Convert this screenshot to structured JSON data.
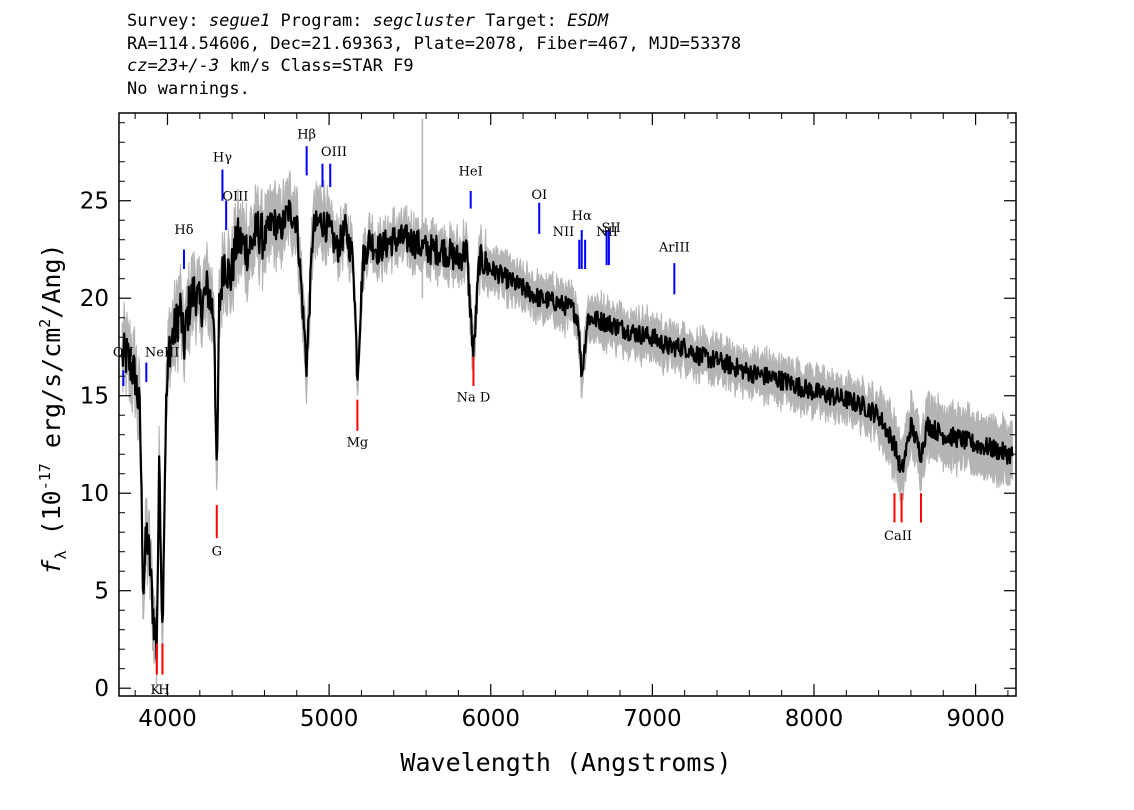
{
  "header": {
    "survey_label": "Survey: ",
    "survey": "segue1",
    "program_label": " Program: ",
    "program": "segcluster",
    "target_label": " Target: ",
    "target": "ESDM",
    "line2": "RA=114.54606, Dec=21.69363, Plate=2078, Fiber=467, MJD=53378",
    "cz": "cz=23+/-3",
    "cz_rest": " km/s Class=STAR F9",
    "line4": "No warnings."
  },
  "chart_data": {
    "type": "line",
    "title": "",
    "xlabel": "Wavelength (Angstroms)",
    "ylabel": "f_λ (10^-17 erg/s/cm^2/Ang)",
    "ylabel_parts": {
      "f": "f",
      "sub": "λ",
      "pre": " (10",
      "sup1": "-17",
      "mid": " erg/s/cm",
      "sup2": "2",
      "post": "/Ang)"
    },
    "xlim": [
      3700,
      9250
    ],
    "ylim": [
      -0.4,
      29.5
    ],
    "x_ticks": [
      4000,
      5000,
      6000,
      7000,
      8000,
      9000
    ],
    "y_ticks": [
      0,
      5,
      10,
      15,
      20,
      25
    ],
    "colors": {
      "spectrum": "#000000",
      "error_band": "#b4b4b4",
      "emission": "#0000ff",
      "absorption": "#ff0000"
    },
    "series": [
      {
        "role": "spectrum",
        "x": [
          3750,
          3800,
          3830,
          3850,
          3870,
          3890,
          3910,
          3933,
          3950,
          3968,
          3990,
          4010,
          4050,
          4080,
          4102,
          4130,
          4170,
          4200,
          4250,
          4290,
          4305,
          4320,
          4350,
          4390,
          4430,
          4500,
          4560,
          4600,
          4650,
          4700,
          4750,
          4800,
          4861,
          4900,
          4950,
          5000,
          5050,
          5100,
          5150,
          5175,
          5210,
          5250,
          5300,
          5400,
          5500,
          5600,
          5700,
          5800,
          5850,
          5893,
          5930,
          6000,
          6100,
          6200,
          6300,
          6400,
          6500,
          6540,
          6563,
          6600,
          6700,
          6800,
          6900,
          7000,
          7100,
          7200,
          7300,
          7400,
          7500,
          7600,
          7700,
          7800,
          7900,
          8000,
          8100,
          8200,
          8300,
          8400,
          8498,
          8542,
          8600,
          8662,
          8700,
          8800,
          8900,
          9000,
          9100,
          9200
        ],
        "y": [
          17.0,
          16.0,
          14.0,
          5.0,
          8.0,
          6.5,
          4.0,
          2.0,
          12.0,
          3.0,
          14.0,
          17.5,
          18.5,
          19.5,
          17.5,
          19.5,
          20.5,
          19.5,
          20.5,
          19.0,
          10.0,
          19.5,
          22.0,
          21.0,
          23.0,
          22.5,
          23.5,
          23.0,
          24.0,
          23.5,
          24.5,
          24.0,
          16.5,
          23.5,
          24.0,
          23.5,
          22.5,
          23.5,
          22.0,
          16.0,
          22.0,
          23.0,
          22.5,
          23.0,
          23.0,
          22.5,
          22.5,
          22.0,
          22.5,
          17.0,
          22.0,
          21.5,
          21.0,
          20.5,
          20.0,
          19.8,
          19.5,
          19.0,
          16.0,
          19.0,
          18.8,
          18.5,
          18.2,
          18.0,
          17.5,
          17.5,
          17.0,
          16.8,
          16.5,
          16.2,
          16.0,
          15.8,
          15.5,
          15.2,
          15.0,
          14.8,
          14.5,
          14.0,
          12.5,
          11.0,
          13.5,
          12.0,
          13.5,
          13.0,
          12.8,
          12.5,
          12.3,
          12.0
        ]
      }
    ],
    "emission_lines": [
      {
        "label": "OII",
        "x": 3727,
        "y_top": 16.3,
        "y_bot": 15.5
      },
      {
        "label": "NeIII",
        "x": 3869,
        "y_top": 16.7,
        "y_bot": 15.7
      },
      {
        "label": "Hδ",
        "x": 4102,
        "y_top": 22.5,
        "y_bot": 21.5
      },
      {
        "label": "Hγ",
        "x": 4340,
        "y_top": 26.6,
        "y_bot": 25.0
      },
      {
        "label": "OIII",
        "x": 4363,
        "y_top": 25.0,
        "y_bot": 23.5
      },
      {
        "label": "Hβ",
        "x": 4861,
        "y_top": 27.8,
        "y_bot": 26.3
      },
      {
        "label": "OIII",
        "x": 4959,
        "y_top": 26.9,
        "y_bot": 25.7
      },
      {
        "label": "OIII",
        "x": 5007,
        "y_top": 26.9,
        "y_bot": 25.7
      },
      {
        "label": "HeI",
        "x": 5876,
        "y_top": 25.5,
        "y_bot": 24.6
      },
      {
        "label": "OI",
        "x": 6300,
        "y_top": 24.9,
        "y_bot": 23.3
      },
      {
        "label": "NII",
        "x": 6548,
        "y_top": 23.0,
        "y_bot": 21.5
      },
      {
        "label": "Hα",
        "x": 6563,
        "y_top": 23.5,
        "y_bot": 21.5
      },
      {
        "label": "NII",
        "x": 6584,
        "y_top": 23.0,
        "y_bot": 21.5
      },
      {
        "label": "SII",
        "x": 6717,
        "y_top": 23.5,
        "y_bot": 21.7
      },
      {
        "label": "SII",
        "x": 6731,
        "y_top": 23.5,
        "y_bot": 21.7
      },
      {
        "label": "ArIII",
        "x": 7136,
        "y_top": 21.8,
        "y_bot": 20.2
      }
    ],
    "absorption_lines": [
      {
        "label": "K",
        "x": 3934,
        "y_top": 2.3,
        "y_bot": 0.7
      },
      {
        "label": "H",
        "x": 3969,
        "y_top": 2.3,
        "y_bot": 0.7
      },
      {
        "label": "G",
        "x": 4305,
        "y_top": 9.4,
        "y_bot": 7.7
      },
      {
        "label": "Mg",
        "x": 5175,
        "y_top": 14.8,
        "y_bot": 13.2
      },
      {
        "label": "Na D",
        "x": 5893,
        "y_top": 17.0,
        "y_bot": 15.5
      },
      {
        "label": "CaII",
        "x": 8498,
        "y_top": 10.0,
        "y_bot": 8.5
      },
      {
        "label": "CaII",
        "x": 8542,
        "y_top": 10.0,
        "y_bot": 8.5
      },
      {
        "label": "CaII",
        "x": 8662,
        "y_top": 10.0,
        "y_bot": 8.5
      }
    ],
    "line_labels": {
      "emission": [
        {
          "text": "OII",
          "x": 3727,
          "y": 17.0,
          "anchor": "middle"
        },
        {
          "text": "NeIII",
          "x": 3860,
          "y": 17.0,
          "anchor": "start"
        },
        {
          "text": "Hδ",
          "x": 4102,
          "y": 23.3,
          "anchor": "middle"
        },
        {
          "text": "Hγ",
          "x": 4340,
          "y": 27.0,
          "anchor": "middle"
        },
        {
          "text": "OIII",
          "x": 4420,
          "y": 25.0,
          "anchor": "middle"
        },
        {
          "text": "Hβ",
          "x": 4861,
          "y": 28.2,
          "anchor": "middle"
        },
        {
          "text": "OIII",
          "x": 5030,
          "y": 27.3,
          "anchor": "middle"
        },
        {
          "text": "HeI",
          "x": 5876,
          "y": 26.3,
          "anchor": "middle"
        },
        {
          "text": "OI",
          "x": 6300,
          "y": 25.1,
          "anchor": "middle"
        },
        {
          "text": "NII",
          "x": 6450,
          "y": 23.2,
          "anchor": "middle"
        },
        {
          "text": "Hα",
          "x": 6563,
          "y": 24.0,
          "anchor": "middle"
        },
        {
          "text": "NII",
          "x": 6720,
          "y": 23.2,
          "anchor": "middle"
        },
        {
          "text": "SII",
          "x": 6745,
          "y": 23.4,
          "anchor": "middle"
        },
        {
          "text": "ArIII",
          "x": 7136,
          "y": 22.4,
          "anchor": "middle"
        }
      ],
      "absorption": [
        {
          "text": "K",
          "x": 3925,
          "y": -0.3,
          "anchor": "middle"
        },
        {
          "text": "H",
          "x": 3978,
          "y": -0.3,
          "anchor": "middle"
        },
        {
          "text": "G",
          "x": 4305,
          "y": 6.8,
          "anchor": "middle"
        },
        {
          "text": "Mg",
          "x": 5175,
          "y": 12.4,
          "anchor": "middle"
        },
        {
          "text": "Na D",
          "x": 5893,
          "y": 14.7,
          "anchor": "middle"
        },
        {
          "text": "CaII",
          "x": 8520,
          "y": 7.6,
          "anchor": "middle"
        }
      ]
    }
  }
}
